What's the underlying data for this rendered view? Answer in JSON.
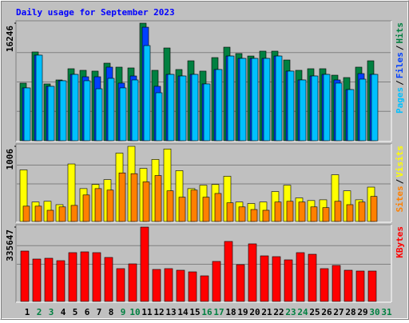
{
  "chart_data": [
    {
      "type": "bar",
      "title": "Daily usage for September 2023",
      "ylim": [
        0,
        16246
      ],
      "yticks": [
        16246
      ],
      "legend_separator": "/",
      "series": [
        {
          "name": "Hits",
          "color": "#008040",
          "values": [
            7960,
            12270,
            7850,
            8400,
            9950,
            9730,
            9620,
            10720,
            10170,
            10060,
            16246,
            9730,
            12820,
            9840,
            11050,
            9620,
            11490,
            12930,
            12050,
            11710,
            12380,
            12380,
            11160,
            9730,
            9950,
            9950,
            9060,
            8730,
            10170,
            11050,
            null
          ]
        },
        {
          "name": "Files",
          "color": "#0040ff",
          "values": [
            7300,
            11830,
            7520,
            8290,
            9170,
            8840,
            8840,
            10170,
            7960,
            8950,
            15690,
            7520,
            9170,
            8950,
            9170,
            7850,
            9840,
            11710,
            11380,
            11380,
            11380,
            11710,
            9620,
            8400,
            8950,
            9170,
            8400,
            7070,
            9280,
            9170,
            null
          ]
        },
        {
          "name": "Pages",
          "color": "#00c0ff",
          "values": [
            7300,
            11830,
            7520,
            8290,
            9170,
            8290,
            7180,
            8620,
            7300,
            8400,
            13150,
            6630,
            9170,
            8950,
            9170,
            7850,
            9840,
            11710,
            11380,
            11380,
            11380,
            11710,
            9620,
            8400,
            8950,
            9170,
            7960,
            7070,
            8510,
            9170,
            null
          ]
        }
      ]
    },
    {
      "type": "bar",
      "ylim": [
        0,
        1006
      ],
      "yticks": [
        1006
      ],
      "legend_separator": "/",
      "series": [
        {
          "name": "Visits",
          "color": "#ffff00",
          "values": [
            690,
            260,
            270,
            225,
            770,
            440,
            495,
            560,
            915,
            1006,
            710,
            830,
            970,
            680,
            440,
            485,
            495,
            605,
            260,
            240,
            260,
            400,
            485,
            315,
            280,
            290,
            625,
            410,
            290,
            460,
            null
          ]
        },
        {
          "name": "Sites",
          "color": "#ff8000",
          "values": [
            205,
            205,
            150,
            195,
            215,
            355,
            440,
            420,
            650,
            640,
            530,
            615,
            410,
            325,
            420,
            325,
            375,
            250,
            195,
            160,
            150,
            260,
            270,
            260,
            195,
            185,
            270,
            225,
            260,
            335,
            null
          ]
        }
      ]
    },
    {
      "type": "bar",
      "ylim": [
        0,
        335647
      ],
      "yticks": [
        335647
      ],
      "categories": [
        "1",
        "2",
        "3",
        "4",
        "5",
        "6",
        "7",
        "8",
        "9",
        "10",
        "11",
        "12",
        "13",
        "14",
        "15",
        "16",
        "17",
        "18",
        "19",
        "20",
        "21",
        "22",
        "23",
        "24",
        "25",
        "26",
        "27",
        "28",
        "29",
        "30",
        "31"
      ],
      "category_colors": [
        "#000000",
        "#008040",
        "#008040",
        "#000000",
        "#000000",
        "#000000",
        "#000000",
        "#000000",
        "#008040",
        "#008040",
        "#000000",
        "#000000",
        "#000000",
        "#000000",
        "#000000",
        "#008040",
        "#008040",
        "#000000",
        "#000000",
        "#000000",
        "#000000",
        "#000000",
        "#008040",
        "#008040",
        "#000000",
        "#000000",
        "#000000",
        "#000000",
        "#000000",
        "#008040",
        "#008040"
      ],
      "series": [
        {
          "name": "KBytes",
          "color": "#ff0000",
          "values": [
            227400,
            191300,
            194900,
            184000,
            220200,
            223800,
            220200,
            198500,
            148000,
            169600,
            335647,
            144400,
            148000,
            140800,
            133500,
            115500,
            180500,
            270700,
            166000,
            259900,
            205700,
            202100,
            187700,
            220200,
            212900,
            148000,
            162400,
            140800,
            137200,
            137200,
            null
          ]
        }
      ]
    }
  ]
}
